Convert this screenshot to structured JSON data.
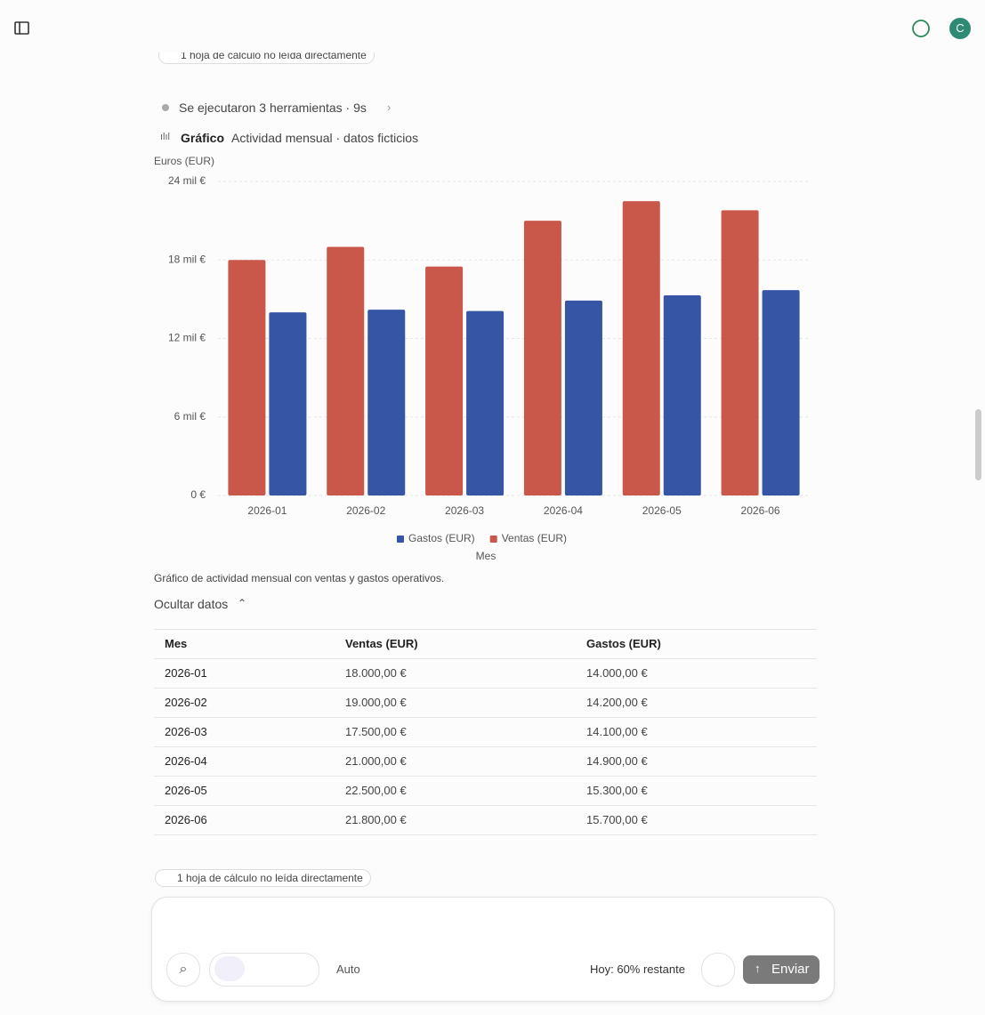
{
  "top_chip": "1 hoja de cálculo no leída directamente",
  "tools": {
    "summary": "Se ejecutaron 3 herramientas · 9s"
  },
  "chart_header": {
    "label": "Gráfico",
    "title": "Actividad mensual · datos ficticios"
  },
  "chart_data": {
    "type": "bar",
    "y_label": "Euros (EUR)",
    "x_label": "Mes",
    "categories": [
      "2026-01",
      "2026-02",
      "2026-03",
      "2026-04",
      "2026-05",
      "2026-06"
    ],
    "series": [
      {
        "name": "Ventas (EUR)",
        "color": "#c9584a",
        "values": [
          18000,
          19000,
          17500,
          21000,
          22500,
          21800
        ]
      },
      {
        "name": "Gastos (EUR)",
        "color": "#3755a5",
        "values": [
          14000,
          14200,
          14100,
          14900,
          15300,
          15700
        ]
      }
    ],
    "ylim": [
      0,
      24000
    ],
    "yticks": [
      {
        "value": 0,
        "label": "0 €"
      },
      {
        "value": 6000,
        "label": "6 mil €"
      },
      {
        "value": 12000,
        "label": "12 mil €"
      },
      {
        "value": 18000,
        "label": "18 mil €"
      },
      {
        "value": 24000,
        "label": "24 mil €"
      }
    ],
    "grid": true,
    "legend": "bottom"
  },
  "caption": "Gráfico de actividad mensual con ventas y gastos operativos.",
  "toggle": "Ocultar datos",
  "table": {
    "header": [
      "Mes",
      "Ventas (EUR)",
      "Gastos (EUR)"
    ],
    "rows": [
      [
        "2026-01",
        "18.000,00 €",
        "14.000,00 €"
      ],
      [
        "2026-02",
        "19.000,00 €",
        "14.200,00 €"
      ],
      [
        "2026-03",
        "17.500,00 €",
        "14.100,00 €"
      ],
      [
        "2026-04",
        "21.000,00 €",
        "14.900,00 €"
      ],
      [
        "2026-05",
        "22.500,00 €",
        "15.300,00 €"
      ],
      [
        "2026-06",
        "21.800,00 €",
        "15.700,00 €"
      ]
    ]
  },
  "bottom_chip": "1 hoja de cálculo no leída directamente",
  "composer": {
    "mode": "Auto",
    "quota": "Hoy: 60% restante",
    "send": "Enviar"
  },
  "avatar": "C"
}
